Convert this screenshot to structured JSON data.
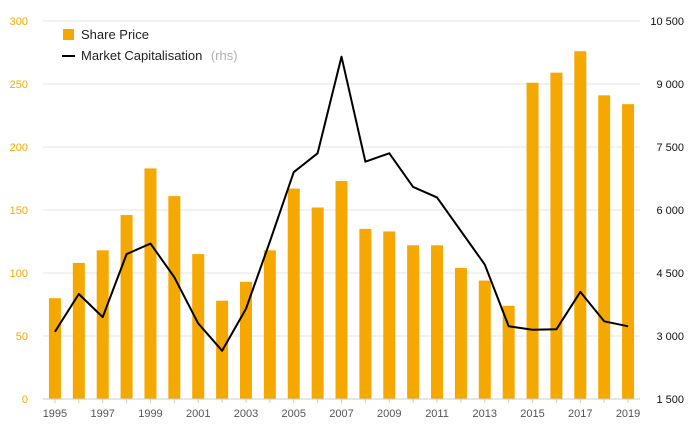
{
  "chart_data": {
    "type": "bar+line",
    "categories": [
      "1995",
      "1996",
      "1997",
      "1998",
      "1999",
      "2000",
      "2001",
      "2002",
      "2003",
      "2004",
      "2005",
      "2006",
      "2007",
      "2008",
      "2009",
      "2010",
      "2011",
      "2012",
      "2013",
      "2014",
      "2015",
      "2016",
      "2017",
      "2018",
      "2019"
    ],
    "x_tick_labels": [
      "1995",
      "1997",
      "1999",
      "2001",
      "2003",
      "2005",
      "2007",
      "2009",
      "2011",
      "2013",
      "2015",
      "2017",
      "2019"
    ],
    "series": [
      {
        "name": "Share Price",
        "type": "bar",
        "axis": "left",
        "color": "#F5A800",
        "values": [
          80,
          108,
          118,
          146,
          183,
          161,
          115,
          78,
          93,
          118,
          167,
          152,
          173,
          135,
          133,
          122,
          122,
          104,
          94,
          74,
          251,
          259,
          276,
          241,
          234
        ]
      },
      {
        "name": "Market Capitalisation",
        "name_suffix": "(rhs)",
        "type": "line",
        "axis": "right",
        "color": "#000000",
        "values": [
          3100,
          4000,
          3450,
          4950,
          5200,
          4400,
          3300,
          2650,
          3650,
          5250,
          6900,
          7350,
          9650,
          7150,
          7350,
          6550,
          6300,
          5500,
          4700,
          3230,
          3150,
          3160,
          4050,
          3350,
          3230
        ]
      }
    ],
    "y_left": {
      "ylim": [
        0,
        300
      ],
      "ticks": [
        0,
        50,
        100,
        150,
        200,
        250,
        300
      ],
      "color": "#F5A800"
    },
    "y_right": {
      "ylim": [
        1500,
        10500
      ],
      "ticks": [
        1500,
        3000,
        4500,
        6000,
        7500,
        9000,
        10500
      ],
      "tick_labels": [
        "1 500",
        "3 000",
        "4 500",
        "6 000",
        "7 500",
        "9 000",
        "10 500"
      ]
    },
    "grid": true,
    "legend_position": "top-left"
  }
}
